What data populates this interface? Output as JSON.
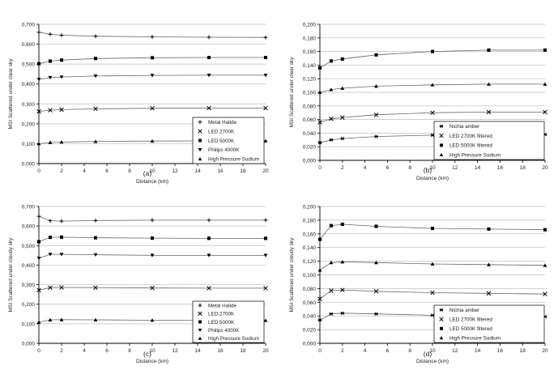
{
  "chart_data": [
    {
      "type": "line",
      "panel_label": "(a)",
      "xlabel": "Distance (km)",
      "ylabel": "MSI Scattered under clear sky",
      "xlim": [
        0,
        20
      ],
      "ylim": [
        0,
        0.7
      ],
      "x_ticks": [
        "0",
        "2",
        "4",
        "6",
        "8",
        "10",
        "12",
        "14",
        "16",
        "18",
        "20"
      ],
      "y_ticks": [
        "0,000",
        "0,100",
        "0,200",
        "0,300",
        "0,400",
        "0,500",
        "0,600",
        "0,700"
      ],
      "grid": "horizontal",
      "legend_position": "bottom-right",
      "x": [
        0,
        1,
        2,
        5,
        10,
        15,
        20
      ],
      "series": [
        {
          "name": "Metal Halide",
          "marker": "plus",
          "values": [
            0.66,
            0.65,
            0.645,
            0.64,
            0.637,
            0.635,
            0.634
          ]
        },
        {
          "name": "LED 2700K",
          "marker": "x",
          "values": [
            0.262,
            0.268,
            0.271,
            0.275,
            0.278,
            0.279,
            0.279
          ]
        },
        {
          "name": "LED 5000K",
          "marker": "square",
          "values": [
            0.502,
            0.515,
            0.52,
            0.528,
            0.532,
            0.533,
            0.533
          ]
        },
        {
          "name": "Philips 4000K",
          "marker": "triangle-down",
          "values": [
            0.423,
            0.432,
            0.435,
            0.44,
            0.443,
            0.444,
            0.444
          ]
        },
        {
          "name": "High Pressure Sodium",
          "marker": "triangle-up",
          "values": [
            0.1,
            0.106,
            0.108,
            0.111,
            0.113,
            0.114,
            0.114
          ]
        }
      ]
    },
    {
      "type": "line",
      "panel_label": "(b)",
      "xlabel": "Distance (km)",
      "ylabel": "MSI Scattered under clear sky",
      "xlim": [
        0,
        20
      ],
      "ylim": [
        0,
        0.2
      ],
      "x_ticks": [
        "0",
        "2",
        "4",
        "6",
        "8",
        "10",
        "12",
        "14",
        "16",
        "18",
        "20"
      ],
      "y_ticks": [
        "0,000",
        "0,020",
        "0,040",
        "0,060",
        "0,080",
        "0,100",
        "0,120",
        "0,140",
        "0,160",
        "0,180",
        "0,200"
      ],
      "grid": "horizontal",
      "legend_position": "bottom-right",
      "x": [
        0,
        1,
        2,
        5,
        10,
        15,
        20
      ],
      "series": [
        {
          "name": "Nichia amber",
          "marker": "asterisk",
          "values": [
            0.026,
            0.03,
            0.032,
            0.035,
            0.037,
            0.038,
            0.038
          ]
        },
        {
          "name": "LED 2700K filtered",
          "marker": "x",
          "values": [
            0.056,
            0.061,
            0.063,
            0.067,
            0.07,
            0.071,
            0.071
          ]
        },
        {
          "name": "LED 5000K filtered",
          "marker": "square",
          "values": [
            0.136,
            0.146,
            0.149,
            0.155,
            0.16,
            0.162,
            0.162
          ]
        },
        {
          "name": "High Pressure Sodium",
          "marker": "triangle-up",
          "values": [
            0.1,
            0.104,
            0.106,
            0.109,
            0.111,
            0.112,
            0.112
          ]
        }
      ]
    },
    {
      "type": "line",
      "panel_label": "(c)",
      "xlabel": "Distance (km)",
      "ylabel": "MSI Scattered under cloudy sky",
      "xlim": [
        0,
        20
      ],
      "ylim": [
        0,
        0.7
      ],
      "x_ticks": [
        "0",
        "2",
        "4",
        "6",
        "8",
        "10",
        "12",
        "14",
        "16",
        "18",
        "20"
      ],
      "y_ticks": [
        "0,000",
        "0,100",
        "0,200",
        "0,300",
        "0,400",
        "0,500",
        "0,600",
        "0,700"
      ],
      "grid": "horizontal",
      "legend_position": "bottom-right",
      "x": [
        0,
        1,
        2,
        5,
        10,
        15,
        20
      ],
      "series": [
        {
          "name": "Metal Halide",
          "marker": "plus",
          "values": [
            0.65,
            0.627,
            0.625,
            0.628,
            0.63,
            0.63,
            0.63
          ]
        },
        {
          "name": "LED 2700K",
          "marker": "x",
          "values": [
            0.272,
            0.285,
            0.286,
            0.285,
            0.283,
            0.282,
            0.282
          ]
        },
        {
          "name": "LED 5000K",
          "marker": "square",
          "values": [
            0.52,
            0.542,
            0.543,
            0.54,
            0.538,
            0.537,
            0.537
          ]
        },
        {
          "name": "Philips 4000K",
          "marker": "triangle-down",
          "values": [
            0.435,
            0.455,
            0.455,
            0.453,
            0.45,
            0.45,
            0.45
          ]
        },
        {
          "name": "High Pressure Sodium",
          "marker": "triangle-up",
          "values": [
            0.108,
            0.12,
            0.121,
            0.12,
            0.118,
            0.117,
            0.117
          ]
        }
      ]
    },
    {
      "type": "line",
      "panel_label": "(d)",
      "xlabel": "Distance (km)",
      "ylabel": "MSI Scattered under cloudy sky",
      "xlim": [
        0,
        20
      ],
      "ylim": [
        0,
        0.2
      ],
      "x_ticks": [
        "0",
        "2",
        "4",
        "6",
        "8",
        "10",
        "12",
        "14",
        "16",
        "18",
        "20"
      ],
      "y_ticks": [
        "0,000",
        "0,020",
        "0,040",
        "0,060",
        "0,080",
        "0,100",
        "0,120",
        "0,140",
        "0,160",
        "0,180",
        "0,200"
      ],
      "grid": "horizontal",
      "legend_position": "bottom-right",
      "x": [
        0,
        1,
        2,
        5,
        10,
        15,
        20
      ],
      "series": [
        {
          "name": "Nichia amber",
          "marker": "asterisk",
          "values": [
            0.034,
            0.043,
            0.044,
            0.043,
            0.041,
            0.04,
            0.039
          ]
        },
        {
          "name": "LED 2700K filtered",
          "marker": "x",
          "values": [
            0.065,
            0.077,
            0.078,
            0.076,
            0.074,
            0.073,
            0.072
          ]
        },
        {
          "name": "LED 5000K filtered",
          "marker": "square",
          "values": [
            0.152,
            0.172,
            0.174,
            0.171,
            0.168,
            0.167,
            0.166
          ]
        },
        {
          "name": "High Pressure Sodium",
          "marker": "triangle-up",
          "values": [
            0.107,
            0.118,
            0.119,
            0.118,
            0.116,
            0.115,
            0.114
          ]
        }
      ]
    }
  ]
}
